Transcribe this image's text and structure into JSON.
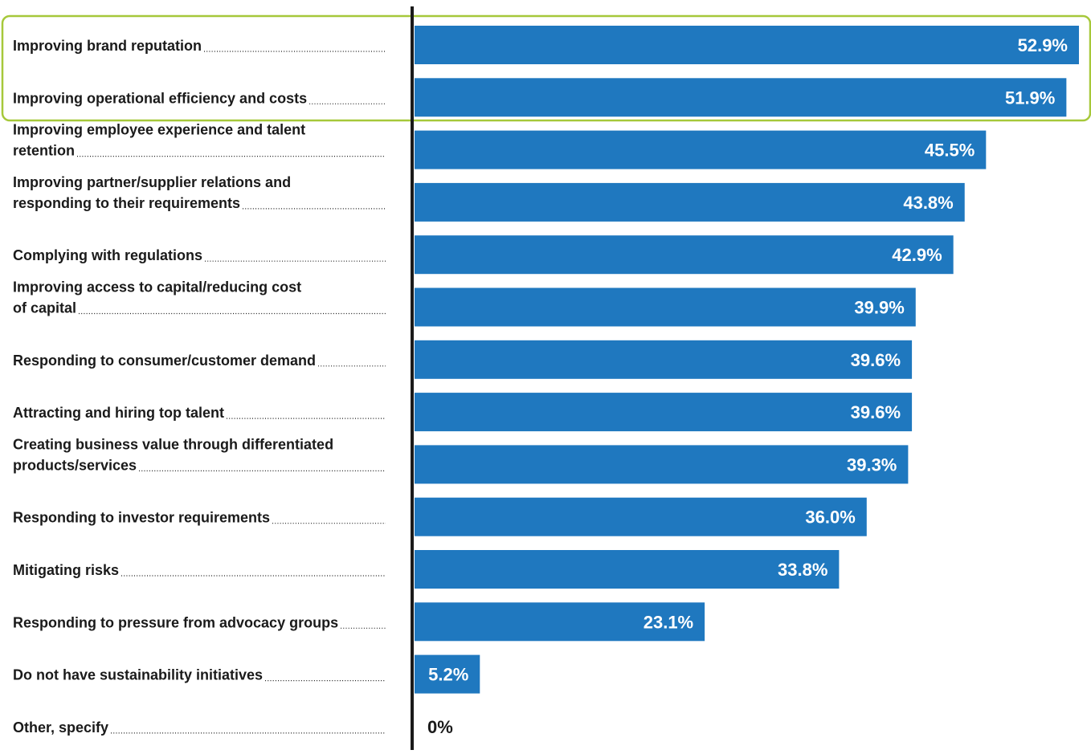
{
  "colors": {
    "bar": "#1f78bf",
    "value_on_bar": "#ffffff",
    "value_outside": "#1a1a1a",
    "label_text": "#1a1a1a",
    "axis_line": "#1a1a1a",
    "highlight_border": "#a6c83a",
    "leader_dots": "#1a1a1a"
  },
  "chart_data": {
    "type": "bar",
    "orientation": "horizontal",
    "title": "",
    "xlabel": "",
    "ylabel": "",
    "xlim": [
      0,
      52.9
    ],
    "grid": false,
    "legend": "none",
    "highlight": {
      "style": "rounded outline",
      "categories": [
        "Improving brand reputation",
        "Improving operational efficiency and costs"
      ]
    },
    "categories": [
      [
        "Improving brand reputation"
      ],
      [
        "Improving operational efficiency and costs"
      ],
      [
        "Improving employee experience and talent",
        "retention"
      ],
      [
        "Improving partner/supplier relations and",
        "responding to their requirements"
      ],
      [
        "Complying with regulations"
      ],
      [
        "Improving access to capital/reducing cost",
        "of capital"
      ],
      [
        "Responding to consumer/customer demand"
      ],
      [
        "Attracting and hiring top talent"
      ],
      [
        "Creating business value through differentiated",
        "products/services"
      ],
      [
        "Responding to investor requirements"
      ],
      [
        "Mitigating risks"
      ],
      [
        "Responding to pressure from advocacy groups"
      ],
      [
        "Do not have sustainability initiatives"
      ],
      [
        "Other, specify"
      ]
    ],
    "values": [
      52.9,
      51.9,
      45.5,
      43.8,
      42.9,
      39.9,
      39.6,
      39.6,
      39.3,
      36.0,
      33.8,
      23.1,
      5.2,
      0
    ],
    "value_labels": [
      "52.9%",
      "51.9%",
      "45.5%",
      "43.8%",
      "42.9%",
      "39.9%",
      "39.6%",
      "39.6%",
      "39.3%",
      "36.0%",
      "33.8%",
      "23.1%",
      "5.2%",
      "0%"
    ]
  }
}
